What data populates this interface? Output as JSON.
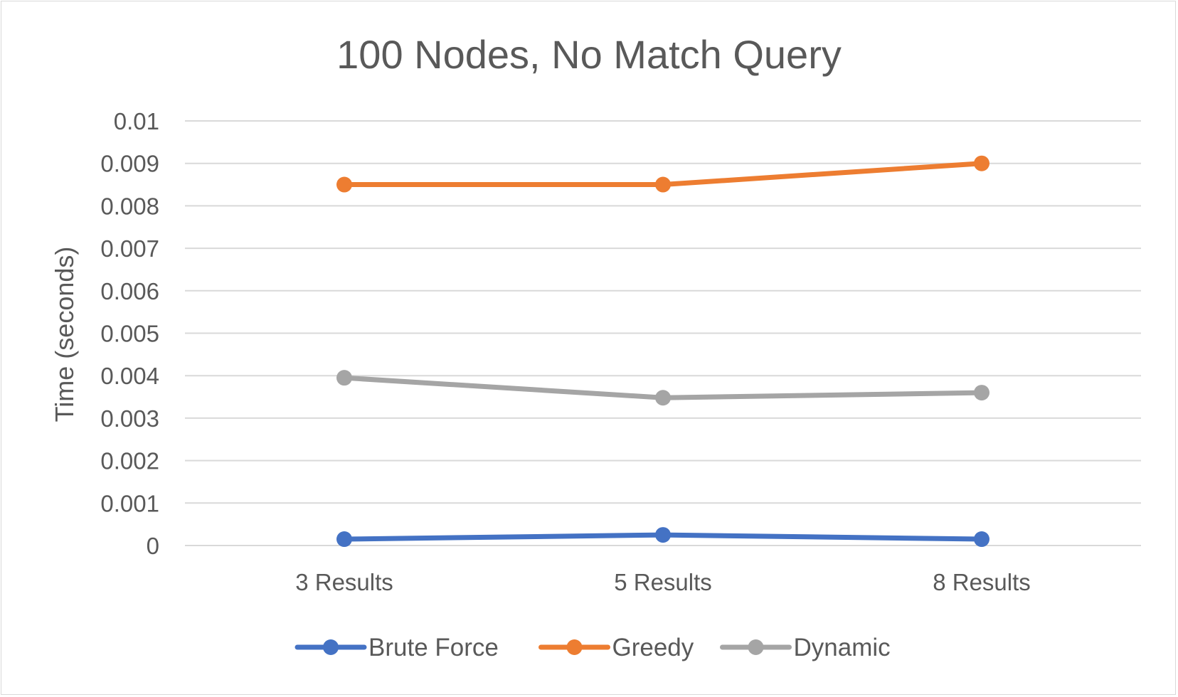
{
  "chart_data": {
    "type": "line",
    "title": "100 Nodes, No Match Query",
    "xlabel": "",
    "ylabel": "Time (seconds)",
    "categories": [
      "3 Results",
      "5 Results",
      "8 Results"
    ],
    "ylim": [
      0,
      0.01
    ],
    "yticks": [
      "0",
      "0.001",
      "0.002",
      "0.003",
      "0.004",
      "0.005",
      "0.006",
      "0.007",
      "0.008",
      "0.009",
      "0.01"
    ],
    "grid": true,
    "legend_position": "bottom",
    "series": [
      {
        "name": "Brute Force",
        "values": [
          0.00015,
          0.00025,
          0.00015
        ],
        "color": "#4472c4"
      },
      {
        "name": "Greedy",
        "values": [
          0.0085,
          0.0085,
          0.009
        ],
        "color": "#ed7d31"
      },
      {
        "name": "Dynamic",
        "values": [
          0.00395,
          0.00348,
          0.0036
        ],
        "color": "#a5a5a5"
      }
    ],
    "gridline_color": "#d9d9d9",
    "text_color": "#595959"
  }
}
